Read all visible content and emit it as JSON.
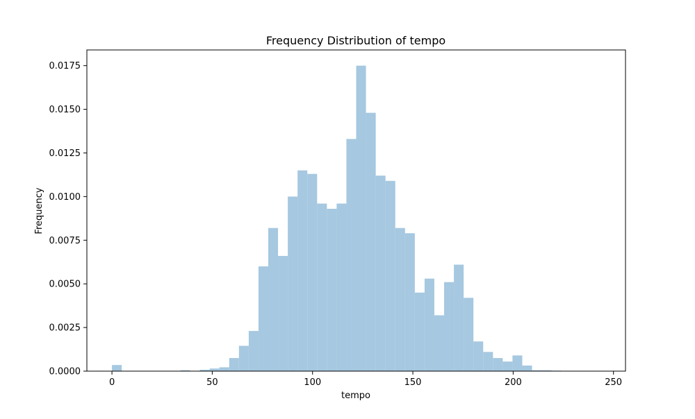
{
  "chart_data": {
    "type": "bar",
    "title": "Frequency Distribution of tempo",
    "xlabel": "tempo",
    "ylabel": "Frequency",
    "xlim": [
      -12.5,
      256.0
    ],
    "ylim": [
      0,
      0.0184
    ],
    "xticks": [
      {
        "value": 0,
        "label": "0"
      },
      {
        "value": 50,
        "label": "50"
      },
      {
        "value": 100,
        "label": "100"
      },
      {
        "value": 150,
        "label": "150"
      },
      {
        "value": 200,
        "label": "200"
      },
      {
        "value": 250,
        "label": "250"
      }
    ],
    "yticks": [
      {
        "value": 0,
        "label": "0.0000"
      },
      {
        "value": 0.0025,
        "label": "0.0025"
      },
      {
        "value": 0.005,
        "label": "0.0050"
      },
      {
        "value": 0.0075,
        "label": "0.0075"
      },
      {
        "value": 0.01,
        "label": "0.0100"
      },
      {
        "value": 0.0125,
        "label": "0.0125"
      },
      {
        "value": 0.015,
        "label": "0.0150"
      },
      {
        "value": 0.0175,
        "label": "0.0175"
      }
    ],
    "bins": {
      "start": 0,
      "width": 4.87,
      "values": [
        0.00035,
        0.0,
        0.0,
        0.0,
        0.0,
        0.0,
        0.0,
        5e-05,
        0.0,
        8e-05,
        0.00015,
        0.00022,
        0.00075,
        0.00145,
        0.0023,
        0.006,
        0.0082,
        0.0066,
        0.01,
        0.0115,
        0.0113,
        0.0096,
        0.0093,
        0.0096,
        0.0133,
        0.0175,
        0.0148,
        0.0112,
        0.0109,
        0.0082,
        0.0079,
        0.0045,
        0.0053,
        0.0032,
        0.0051,
        0.0061,
        0.0042,
        0.0017,
        0.0011,
        0.00075,
        0.00055,
        0.0009,
        0.00032,
        5e-05,
        5e-05,
        3e-05
      ]
    },
    "bar_color": "#a6c8e0",
    "frame_color": "#000000",
    "grid": false,
    "legend": "none"
  }
}
